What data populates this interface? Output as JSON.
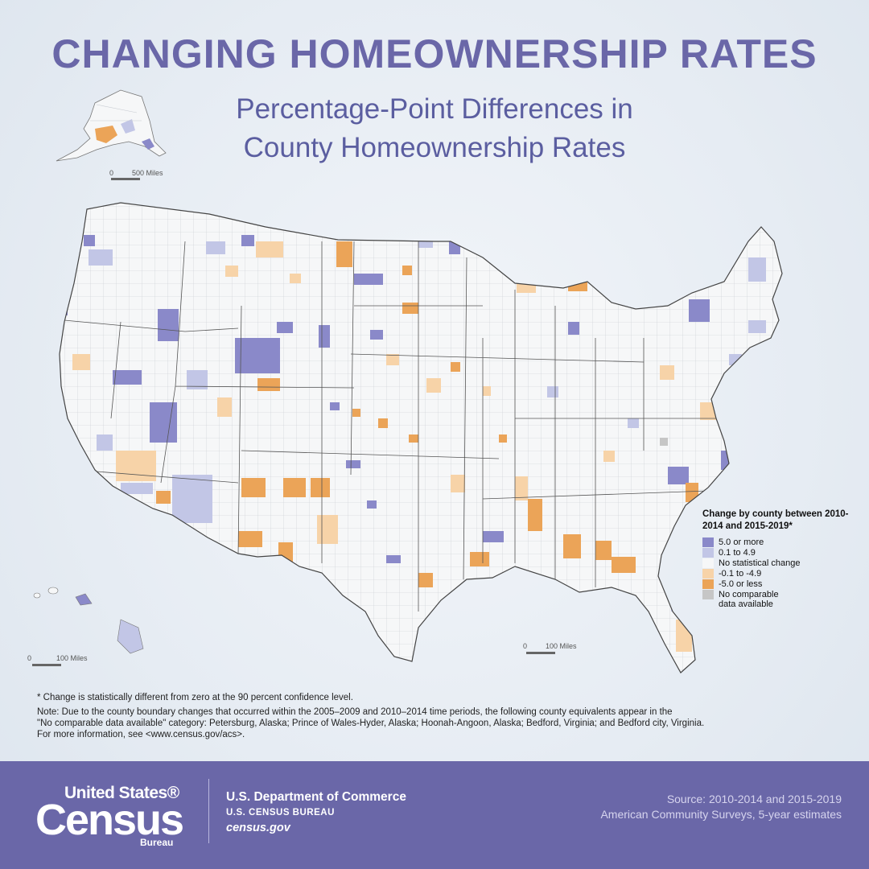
{
  "title": "CHANGING HOMEOWNERSHIP RATES",
  "subtitle": [
    "Percentage-Point Differences in",
    "County Homeownership Rates"
  ],
  "scale_bars": {
    "alaska": {
      "zero": "0",
      "label": "500 Miles"
    },
    "hawaii": {
      "zero": "0",
      "label": "100 Miles"
    },
    "conus": {
      "zero": "0",
      "label": "100 Miles"
    }
  },
  "legend": {
    "title": "Change by county between 2010-2014 and 2015-2019*",
    "items": [
      {
        "label": "5.0 or more",
        "color": "#8a89c9"
      },
      {
        "label": "0.1 to 4.9",
        "color": "#c2c6e6"
      },
      {
        "label": "No statistical change",
        "color": "#f6f7f8"
      },
      {
        "label": "-0.1 to -4.9",
        "color": "#f7d3a8"
      },
      {
        "label": "-5.0 or less",
        "color": "#eba458"
      },
      {
        "label": "No comparable\ndata available",
        "color": "#c6c6c6"
      }
    ]
  },
  "notes": {
    "footnote": "* Change is statistically different from zero at the 90 percent confidence level.",
    "lines": [
      "Note: Due to the county boundary changes that occurred within the 2005–2009 and 2010–2014 time periods, the following county equivalents appear in the",
      "\"No comparable data available\" category: Petersburg, Alaska; Prince of Wales-Hyder, Alaska; Hoonah-Angoon, Alaska; Bedford, Virginia; and Bedford city, Virginia.",
      "For more information, see <www.census.gov/acs>."
    ]
  },
  "footer": {
    "logo_top": "United States®",
    "logo_main": "Census",
    "logo_bottom": "Bureau",
    "department": "U.S. Department of Commerce",
    "bureau": "U.S. CENSUS BUREAU",
    "website": "census.gov",
    "source": [
      "Source: 2010-2014 and 2015-2019",
      "American Community Surveys, 5-year estimates"
    ]
  },
  "colors": {
    "title": "#6a67a8",
    "footer_bg": "#6a67a8",
    "state_border": "#444444",
    "county_border": "#b9bcc2"
  }
}
